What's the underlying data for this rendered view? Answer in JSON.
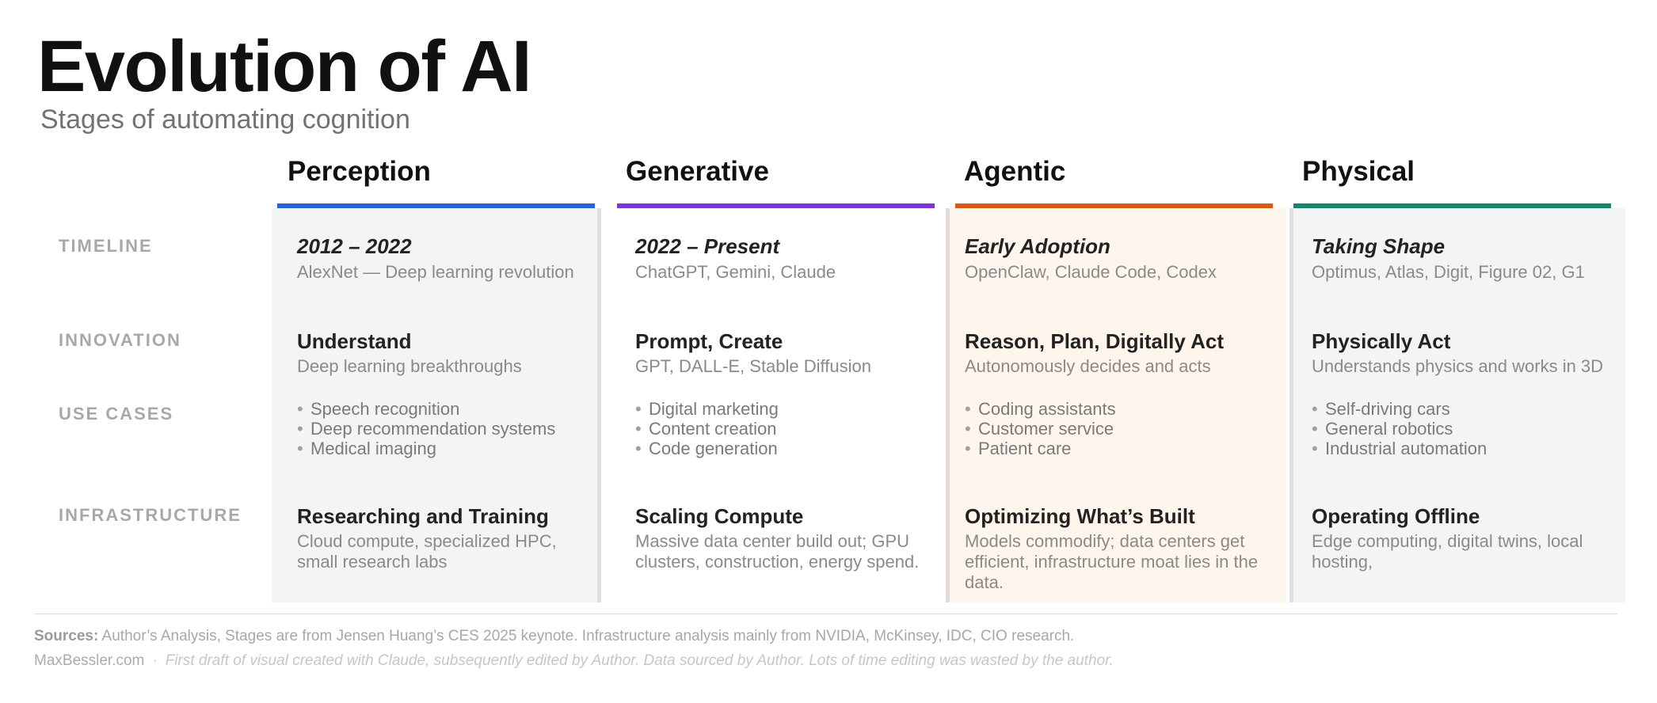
{
  "header": {
    "title": "Evolution of AI",
    "subtitle": "Stages of automating cognition"
  },
  "row_labels": {
    "timeline": "TIMELINE",
    "innovation": "INNOVATION",
    "use_cases": "USE CASES",
    "infrastructure": "INFRASTRUCTURE"
  },
  "colors": {
    "perception": "#2563d9",
    "generative": "#7b35d8",
    "agentic": "#d95a17",
    "physical": "#12876b",
    "panel_gray": "#f3f4f6",
    "panel_warm": "#fef6ec"
  },
  "columns": [
    {
      "name": "Perception",
      "timeline": {
        "period": "2012 – 2022",
        "detail": "AlexNet — Deep learning revolution"
      },
      "innovation": {
        "title": "Understand",
        "detail": "Deep learning breakthroughs"
      },
      "use_cases": [
        "Speech recognition",
        "Deep recommendation systems",
        "Medical imaging"
      ],
      "infrastructure": {
        "title": "Researching and Training",
        "detail": "Cloud compute, specialized HPC, small research labs"
      }
    },
    {
      "name": "Generative",
      "timeline": {
        "period": "2022 – Present",
        "detail": "ChatGPT, Gemini, Claude"
      },
      "innovation": {
        "title": "Prompt, Create",
        "detail": "GPT, DALL-E, Stable Diffusion"
      },
      "use_cases": [
        "Digital marketing",
        "Content creation",
        "Code generation"
      ],
      "infrastructure": {
        "title": "Scaling Compute",
        "detail": "Massive data center build out; GPU clusters, construction, energy spend."
      }
    },
    {
      "name": "Agentic",
      "timeline": {
        "period": "Early Adoption",
        "detail": "OpenClaw, Claude Code, Codex"
      },
      "innovation": {
        "title": "Reason, Plan, Digitally Act",
        "detail": "Autonomously decides and acts"
      },
      "use_cases": [
        "Coding assistants",
        "Customer service",
        "Patient care"
      ],
      "infrastructure": {
        "title": "Optimizing What’s Built",
        "detail": "Models commodify; data centers get efficient, infrastructure moat lies in the data."
      }
    },
    {
      "name": "Physical",
      "timeline": {
        "period": "Taking Shape",
        "detail": "Optimus, Atlas, Digit, Figure 02, G1"
      },
      "innovation": {
        "title": "Physically Act",
        "detail": "Understands physics and works in 3D"
      },
      "use_cases": [
        "Self-driving cars",
        "General robotics",
        "Industrial automation"
      ],
      "infrastructure": {
        "title": "Operating Offline",
        "detail": "Edge computing, digital twins, local hosting,"
      }
    }
  ],
  "footer": {
    "sources_label": "Sources:",
    "sources_text": "Author’s Analysis, Stages are from Jensen Huang’s CES 2025 keynote. Infrastructure analysis mainly from NVIDIA, McKinsey, IDC, CIO research.",
    "site": "MaxBessler.com",
    "separator": "·",
    "note": "First draft of visual created with Claude, subsequently edited by Author. Data sourced by Author. Lots of time editing was wasted by the author."
  }
}
